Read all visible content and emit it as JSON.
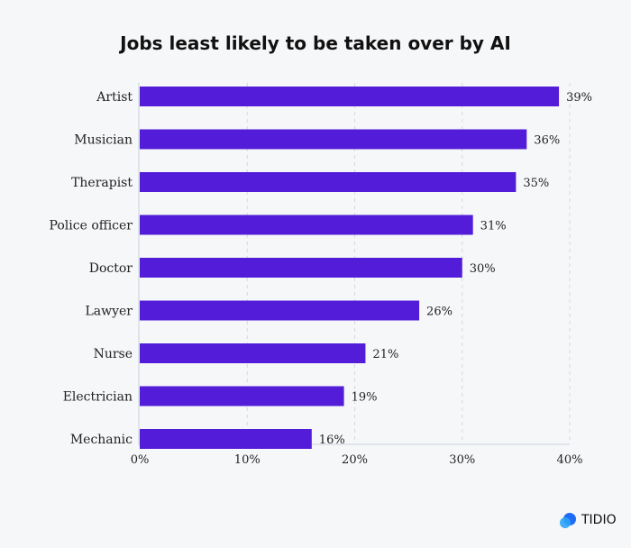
{
  "chart_data": {
    "type": "bar",
    "orientation": "horizontal",
    "title": "Jobs least likely to be taken over by AI",
    "categories": [
      "Artist",
      "Musician",
      "Therapist",
      "Police officer",
      "Doctor",
      "Lawyer",
      "Nurse",
      "Electrician",
      "Mechanic"
    ],
    "values": [
      39,
      36,
      35,
      31,
      30,
      26,
      21,
      19,
      16
    ],
    "value_labels": [
      "39%",
      "36%",
      "35%",
      "31%",
      "30%",
      "26%",
      "21%",
      "19%",
      "16%"
    ],
    "xlim": [
      0,
      40
    ],
    "xticks": [
      "0%",
      "10%",
      "20%",
      "30%",
      "40%"
    ],
    "grid": "vertical dashed",
    "bar_color": "#531cd8",
    "background": "#f6f7f9"
  },
  "brand": {
    "name": "TIDIO"
  }
}
